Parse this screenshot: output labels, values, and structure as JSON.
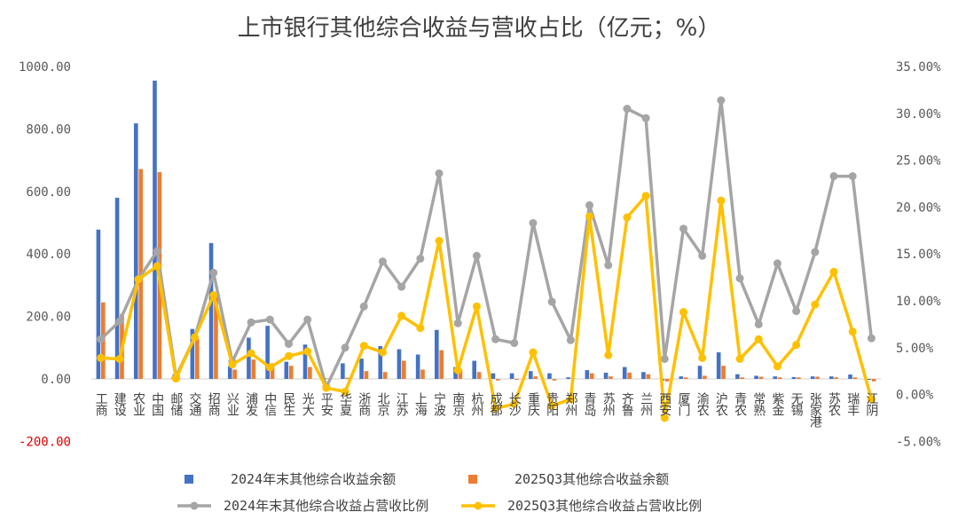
{
  "chart_data": {
    "type": "bar",
    "title": "上市银行其他综合收益与营收占比（亿元；%）",
    "categories": [
      "工商",
      "建设",
      "农业",
      "中国",
      "邮储",
      "交通",
      "招商",
      "兴业",
      "浦发",
      "中信",
      "民生",
      "光大",
      "平安",
      "华夏",
      "浙商",
      "北京",
      "江苏",
      "上海",
      "宁波",
      "南京",
      "杭州",
      "成都",
      "长沙",
      "重庆",
      "贵阳",
      "郑州",
      "青岛",
      "苏州",
      "齐鲁",
      "兰州",
      "西安",
      "厦门",
      "渝农",
      "沪农",
      "青农",
      "常熟",
      "紫金",
      "无锡",
      "张家港",
      "苏农",
      "瑞丰",
      "江阴"
    ],
    "left_axis": {
      "min": -200,
      "max": 1000,
      "step": 200,
      "tick_labels": [
        "-200.00",
        "0.00",
        "200.00",
        "400.00",
        "600.00",
        "800.00",
        "1000.00"
      ]
    },
    "right_axis": {
      "min": -5,
      "max": 35,
      "step": 5,
      "tick_labels": [
        "-5.00%",
        "0.00%",
        "5.00%",
        "10.00%",
        "15.00%",
        "20.00%",
        "25.00%",
        "30.00%",
        "35.00%"
      ]
    },
    "series": [
      {
        "name": "2024年末其他综合收益余额",
        "type": "bar",
        "axis": "left",
        "color": "#4472C4",
        "values": [
          478,
          580,
          818,
          955,
          5,
          160,
          435,
          40,
          132,
          170,
          55,
          110,
          3,
          50,
          65,
          105,
          95,
          78,
          157,
          38,
          58,
          18,
          18,
          25,
          18,
          5,
          28,
          20,
          38,
          22,
          -5,
          8,
          42,
          85,
          15,
          10,
          8,
          6,
          8,
          8,
          14,
          -3
        ]
      },
      {
        "name": "2025Q3其他综合收益余额",
        "type": "bar",
        "axis": "left",
        "color": "#ED7D31",
        "values": [
          245,
          208,
          672,
          662,
          3,
          128,
          268,
          30,
          62,
          50,
          42,
          38,
          2,
          4,
          25,
          22,
          58,
          30,
          92,
          30,
          22,
          -5,
          -3,
          8,
          -5,
          2,
          18,
          8,
          20,
          15,
          -8,
          5,
          10,
          42,
          5,
          7,
          5,
          5,
          7,
          5,
          5,
          -8
        ]
      },
      {
        "name": "2024年末其他综合收益占营收比例",
        "type": "line",
        "axis": "right",
        "color": "#A5A5A5",
        "values": [
          5.9,
          7.8,
          12.3,
          15.3,
          1.9,
          6.1,
          13.0,
          3.5,
          7.7,
          8.0,
          5.4,
          8.0,
          0.8,
          5.0,
          9.4,
          14.2,
          11.5,
          14.5,
          23.6,
          7.6,
          14.8,
          5.9,
          5.5,
          18.3,
          9.9,
          5.8,
          20.2,
          13.8,
          30.5,
          29.5,
          3.8,
          17.7,
          14.8,
          31.4,
          12.4,
          7.5,
          14.0,
          8.9,
          15.2,
          23.3,
          23.3,
          6.0
        ]
      },
      {
        "name": "2025Q3其他综合收益占营收比例",
        "type": "line",
        "axis": "right",
        "color": "#FFC000",
        "values": [
          3.9,
          3.8,
          12.3,
          13.7,
          1.7,
          6.1,
          10.6,
          3.2,
          4.4,
          2.9,
          4.1,
          4.6,
          0.7,
          0.3,
          5.2,
          4.5,
          8.4,
          7.1,
          16.4,
          2.6,
          9.4,
          -1.5,
          -1.0,
          4.5,
          -1.2,
          -0.5,
          19.0,
          4.2,
          18.9,
          21.2,
          -2.5,
          8.8,
          3.9,
          20.7,
          3.8,
          5.9,
          3.0,
          5.3,
          9.6,
          13.1,
          6.7,
          -0.5
        ]
      }
    ]
  }
}
